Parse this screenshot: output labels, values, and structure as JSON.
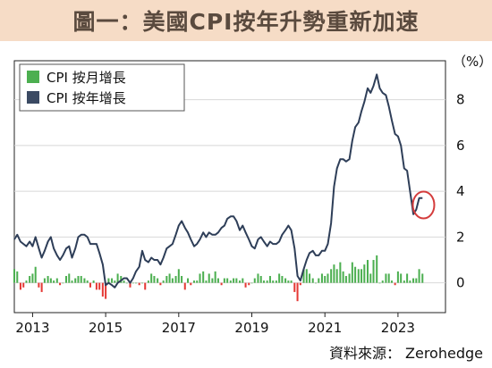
{
  "title": "圖一：美國CPI按年升勢重新加速",
  "source": "資料來源： Zerohedge",
  "colors": {
    "title_band": "#f6dcc6",
    "line": "#2e3e58",
    "bar_positive": "#4caf50",
    "bar_negative": "#e53935",
    "highlight_circle": "#d43c3c",
    "legend_mom": "#4caf50",
    "legend_yoy": "#3b4a63"
  },
  "chart_data": {
    "type": "line",
    "unit_label": "（%）",
    "x_ticks": [
      "2013",
      "2015",
      "2017",
      "2019",
      "2021",
      "2023"
    ],
    "y_ticks": [
      "0",
      "2",
      "4",
      "6",
      "8"
    ],
    "xlim": [
      2012.5,
      2024.3
    ],
    "ylim": [
      -1.3,
      9.7
    ],
    "legend_position": "top-left",
    "highlight": {
      "x": 2023.7,
      "y": 3.4,
      "shape": "circle"
    },
    "series": [
      {
        "name": "CPI 按年增長",
        "kind": "line",
        "points": [
          [
            2012.5,
            1.9
          ],
          [
            2012.58,
            2.1
          ],
          [
            2012.67,
            1.8
          ],
          [
            2012.75,
            1.7
          ],
          [
            2012.83,
            1.6
          ],
          [
            2012.92,
            1.8
          ],
          [
            2013.0,
            1.6
          ],
          [
            2013.08,
            2.0
          ],
          [
            2013.17,
            1.5
          ],
          [
            2013.25,
            1.1
          ],
          [
            2013.33,
            1.4
          ],
          [
            2013.42,
            1.8
          ],
          [
            2013.5,
            2.0
          ],
          [
            2013.58,
            1.5
          ],
          [
            2013.67,
            1.2
          ],
          [
            2013.75,
            1.0
          ],
          [
            2013.83,
            1.2
          ],
          [
            2013.92,
            1.5
          ],
          [
            2014.0,
            1.6
          ],
          [
            2014.08,
            1.1
          ],
          [
            2014.17,
            1.5
          ],
          [
            2014.25,
            2.0
          ],
          [
            2014.33,
            2.1
          ],
          [
            2014.42,
            2.1
          ],
          [
            2014.5,
            2.0
          ],
          [
            2014.58,
            1.7
          ],
          [
            2014.67,
            1.7
          ],
          [
            2014.75,
            1.7
          ],
          [
            2014.83,
            1.3
          ],
          [
            2014.92,
            0.8
          ],
          [
            2015.0,
            -0.1
          ],
          [
            2015.08,
            0.0
          ],
          [
            2015.17,
            -0.1
          ],
          [
            2015.25,
            -0.2
          ],
          [
            2015.33,
            0.0
          ],
          [
            2015.42,
            0.1
          ],
          [
            2015.5,
            0.2
          ],
          [
            2015.58,
            0.2
          ],
          [
            2015.67,
            0.0
          ],
          [
            2015.75,
            0.2
          ],
          [
            2015.83,
            0.5
          ],
          [
            2015.92,
            0.7
          ],
          [
            2016.0,
            1.4
          ],
          [
            2016.08,
            1.0
          ],
          [
            2016.17,
            0.9
          ],
          [
            2016.25,
            1.1
          ],
          [
            2016.33,
            1.0
          ],
          [
            2016.42,
            1.0
          ],
          [
            2016.5,
            0.8
          ],
          [
            2016.58,
            1.1
          ],
          [
            2016.67,
            1.5
          ],
          [
            2016.75,
            1.6
          ],
          [
            2016.83,
            1.7
          ],
          [
            2016.92,
            2.1
          ],
          [
            2017.0,
            2.5
          ],
          [
            2017.08,
            2.7
          ],
          [
            2017.17,
            2.4
          ],
          [
            2017.25,
            2.2
          ],
          [
            2017.33,
            1.9
          ],
          [
            2017.42,
            1.6
          ],
          [
            2017.5,
            1.7
          ],
          [
            2017.58,
            1.9
          ],
          [
            2017.67,
            2.2
          ],
          [
            2017.75,
            2.0
          ],
          [
            2017.83,
            2.2
          ],
          [
            2017.92,
            2.1
          ],
          [
            2018.0,
            2.1
          ],
          [
            2018.08,
            2.2
          ],
          [
            2018.17,
            2.4
          ],
          [
            2018.25,
            2.5
          ],
          [
            2018.33,
            2.8
          ],
          [
            2018.42,
            2.9
          ],
          [
            2018.5,
            2.9
          ],
          [
            2018.58,
            2.7
          ],
          [
            2018.67,
            2.3
          ],
          [
            2018.75,
            2.5
          ],
          [
            2018.83,
            2.2
          ],
          [
            2018.92,
            1.9
          ],
          [
            2019.0,
            1.6
          ],
          [
            2019.08,
            1.5
          ],
          [
            2019.17,
            1.9
          ],
          [
            2019.25,
            2.0
          ],
          [
            2019.33,
            1.8
          ],
          [
            2019.42,
            1.6
          ],
          [
            2019.5,
            1.8
          ],
          [
            2019.58,
            1.7
          ],
          [
            2019.67,
            1.7
          ],
          [
            2019.75,
            1.8
          ],
          [
            2019.83,
            2.1
          ],
          [
            2019.92,
            2.3
          ],
          [
            2020.0,
            2.5
          ],
          [
            2020.08,
            2.3
          ],
          [
            2020.17,
            1.5
          ],
          [
            2020.25,
            0.3
          ],
          [
            2020.33,
            0.1
          ],
          [
            2020.42,
            0.6
          ],
          [
            2020.5,
            1.0
          ],
          [
            2020.58,
            1.3
          ],
          [
            2020.67,
            1.4
          ],
          [
            2020.75,
            1.2
          ],
          [
            2020.83,
            1.2
          ],
          [
            2020.92,
            1.4
          ],
          [
            2021.0,
            1.4
          ],
          [
            2021.08,
            1.7
          ],
          [
            2021.17,
            2.6
          ],
          [
            2021.25,
            4.2
          ],
          [
            2021.33,
            5.0
          ],
          [
            2021.42,
            5.4
          ],
          [
            2021.5,
            5.4
          ],
          [
            2021.58,
            5.3
          ],
          [
            2021.67,
            5.4
          ],
          [
            2021.75,
            6.2
          ],
          [
            2021.83,
            6.8
          ],
          [
            2021.92,
            7.0
          ],
          [
            2022.0,
            7.5
          ],
          [
            2022.08,
            7.9
          ],
          [
            2022.17,
            8.5
          ],
          [
            2022.25,
            8.3
          ],
          [
            2022.33,
            8.6
          ],
          [
            2022.42,
            9.1
          ],
          [
            2022.5,
            8.5
          ],
          [
            2022.58,
            8.3
          ],
          [
            2022.67,
            8.2
          ],
          [
            2022.75,
            7.7
          ],
          [
            2022.83,
            7.1
          ],
          [
            2022.92,
            6.5
          ],
          [
            2023.0,
            6.4
          ],
          [
            2023.08,
            6.0
          ],
          [
            2023.17,
            5.0
          ],
          [
            2023.25,
            4.9
          ],
          [
            2023.33,
            4.0
          ],
          [
            2023.42,
            3.0
          ],
          [
            2023.5,
            3.2
          ],
          [
            2023.58,
            3.7
          ],
          [
            2023.67,
            3.7
          ]
        ]
      },
      {
        "name": "CPI 按月增長",
        "kind": "bar",
        "points": [
          [
            2012.5,
            0.6
          ],
          [
            2012.58,
            0.5
          ],
          [
            2012.67,
            -0.3
          ],
          [
            2012.75,
            -0.2
          ],
          [
            2012.83,
            0.1
          ],
          [
            2012.92,
            0.3
          ],
          [
            2013.0,
            0.4
          ],
          [
            2013.08,
            0.7
          ],
          [
            2013.17,
            -0.2
          ],
          [
            2013.25,
            -0.4
          ],
          [
            2013.33,
            0.2
          ],
          [
            2013.42,
            0.3
          ],
          [
            2013.5,
            0.2
          ],
          [
            2013.58,
            0.1
          ],
          [
            2013.67,
            0.2
          ],
          [
            2013.75,
            -0.1
          ],
          [
            2013.83,
            0.0
          ],
          [
            2013.92,
            0.3
          ],
          [
            2014.0,
            0.4
          ],
          [
            2014.08,
            0.1
          ],
          [
            2014.17,
            0.2
          ],
          [
            2014.25,
            0.3
          ],
          [
            2014.33,
            0.3
          ],
          [
            2014.42,
            0.2
          ],
          [
            2014.5,
            0.1
          ],
          [
            2014.58,
            -0.2
          ],
          [
            2014.67,
            0.1
          ],
          [
            2014.75,
            -0.3
          ],
          [
            2014.83,
            -0.3
          ],
          [
            2014.92,
            -0.6
          ],
          [
            2015.0,
            -0.7
          ],
          [
            2015.08,
            0.2
          ],
          [
            2015.17,
            0.2
          ],
          [
            2015.25,
            0.1
          ],
          [
            2015.33,
            0.4
          ],
          [
            2015.42,
            0.3
          ],
          [
            2015.5,
            0.1
          ],
          [
            2015.58,
            0.0
          ],
          [
            2015.67,
            -0.2
          ],
          [
            2015.75,
            0.0
          ],
          [
            2015.83,
            0.0
          ],
          [
            2015.92,
            -0.1
          ],
          [
            2016.0,
            0.0
          ],
          [
            2016.08,
            -0.3
          ],
          [
            2016.17,
            0.1
          ],
          [
            2016.25,
            0.4
          ],
          [
            2016.33,
            0.3
          ],
          [
            2016.42,
            0.2
          ],
          [
            2016.5,
            -0.1
          ],
          [
            2016.58,
            0.1
          ],
          [
            2016.67,
            0.3
          ],
          [
            2016.75,
            0.4
          ],
          [
            2016.83,
            0.2
          ],
          [
            2016.92,
            0.3
          ],
          [
            2017.0,
            0.6
          ],
          [
            2017.08,
            0.3
          ],
          [
            2017.17,
            -0.3
          ],
          [
            2017.25,
            0.2
          ],
          [
            2017.33,
            -0.1
          ],
          [
            2017.42,
            0.1
          ],
          [
            2017.5,
            0.1
          ],
          [
            2017.58,
            0.4
          ],
          [
            2017.67,
            0.5
          ],
          [
            2017.75,
            0.1
          ],
          [
            2017.83,
            0.4
          ],
          [
            2017.92,
            0.2
          ],
          [
            2018.0,
            0.5
          ],
          [
            2018.08,
            0.2
          ],
          [
            2018.17,
            -0.1
          ],
          [
            2018.25,
            0.2
          ],
          [
            2018.33,
            0.2
          ],
          [
            2018.42,
            0.1
          ],
          [
            2018.5,
            0.2
          ],
          [
            2018.58,
            0.2
          ],
          [
            2018.67,
            0.1
          ],
          [
            2018.75,
            0.2
          ],
          [
            2018.83,
            -0.2
          ],
          [
            2018.92,
            -0.1
          ],
          [
            2019.0,
            0.0
          ],
          [
            2019.08,
            0.2
          ],
          [
            2019.17,
            0.4
          ],
          [
            2019.25,
            0.3
          ],
          [
            2019.33,
            0.1
          ],
          [
            2019.42,
            0.1
          ],
          [
            2019.5,
            0.3
          ],
          [
            2019.58,
            0.1
          ],
          [
            2019.67,
            0.1
          ],
          [
            2019.75,
            0.4
          ],
          [
            2019.83,
            0.3
          ],
          [
            2019.92,
            0.2
          ],
          [
            2020.0,
            0.1
          ],
          [
            2020.08,
            0.1
          ],
          [
            2020.17,
            -0.4
          ],
          [
            2020.25,
            -0.8
          ],
          [
            2020.33,
            -0.1
          ],
          [
            2020.42,
            0.6
          ],
          [
            2020.5,
            0.6
          ],
          [
            2020.58,
            0.4
          ],
          [
            2020.67,
            0.2
          ],
          [
            2020.75,
            0.0
          ],
          [
            2020.83,
            0.2
          ],
          [
            2020.92,
            0.4
          ],
          [
            2021.0,
            0.3
          ],
          [
            2021.08,
            0.4
          ],
          [
            2021.17,
            0.6
          ],
          [
            2021.25,
            0.8
          ],
          [
            2021.33,
            0.6
          ],
          [
            2021.42,
            0.9
          ],
          [
            2021.5,
            0.5
          ],
          [
            2021.58,
            0.3
          ],
          [
            2021.67,
            0.4
          ],
          [
            2021.75,
            0.9
          ],
          [
            2021.83,
            0.7
          ],
          [
            2021.92,
            0.6
          ],
          [
            2022.0,
            0.6
          ],
          [
            2022.08,
            0.8
          ],
          [
            2022.17,
            1.0
          ],
          [
            2022.25,
            0.4
          ],
          [
            2022.33,
            1.0
          ],
          [
            2022.42,
            1.2
          ],
          [
            2022.5,
            0.0
          ],
          [
            2022.58,
            0.1
          ],
          [
            2022.67,
            0.4
          ],
          [
            2022.75,
            0.4
          ],
          [
            2022.83,
            0.1
          ],
          [
            2022.92,
            -0.1
          ],
          [
            2023.0,
            0.5
          ],
          [
            2023.08,
            0.4
          ],
          [
            2023.17,
            0.1
          ],
          [
            2023.25,
            0.4
          ],
          [
            2023.33,
            0.1
          ],
          [
            2023.42,
            0.2
          ],
          [
            2023.5,
            0.2
          ],
          [
            2023.58,
            0.6
          ],
          [
            2023.67,
            0.4
          ]
        ]
      }
    ]
  }
}
